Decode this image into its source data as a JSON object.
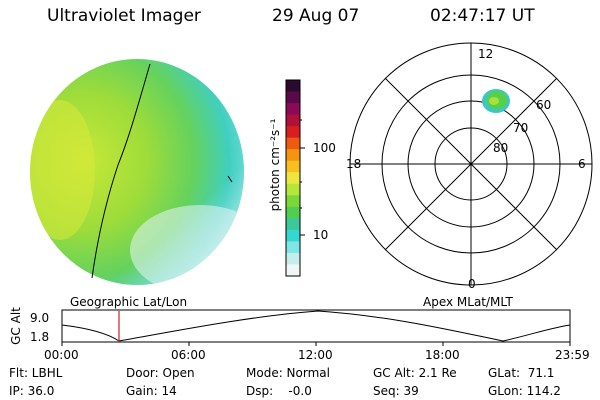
{
  "header": {
    "title": "Ultraviolet Imager",
    "date": "29 Aug 07",
    "time": "02:47:17 UT"
  },
  "colorbar": {
    "unit_label": "photon cm⁻²s⁻¹",
    "ticks": [
      "100",
      "10"
    ],
    "colors": [
      "#2a0a2e",
      "#5a0a4a",
      "#8a0a55",
      "#b0103a",
      "#d81e1e",
      "#ee5a10",
      "#f59410",
      "#f7c020",
      "#eee640",
      "#b5e63a",
      "#7ad938",
      "#4fce52",
      "#3bc99a",
      "#36d7d0",
      "#7ee6e6",
      "#c4eeee",
      "#eef6f6"
    ]
  },
  "polar_plot": {
    "mlt_labels": [
      "12",
      "18",
      "6",
      "0"
    ],
    "lat_labels": [
      "60",
      "70",
      "80"
    ]
  },
  "ephemeris": {
    "left_title": "Geographic Lat/Lon",
    "right_title": "Apex MLat/MLT",
    "yaxis_label": "GC Alt",
    "ymax": "9.0",
    "ymin": "1.8",
    "time_ticks": [
      "00:00",
      "06:00",
      "12:00",
      "18:00",
      "23:59"
    ],
    "marker_time_fraction": 0.116
  },
  "footer": {
    "flt": "Flt: LBHL",
    "ip": "IP: 36.0",
    "door": "Door: Open",
    "gain": "Gain: 14",
    "mode": "Mode: Normal",
    "dsp": "Dsp:    -0.0",
    "gc_alt": "GC Alt: 2.1 Re",
    "seq": "Seq: 39",
    "glat": "GLat:  71.1",
    "glon": "GLon: 114.2"
  }
}
